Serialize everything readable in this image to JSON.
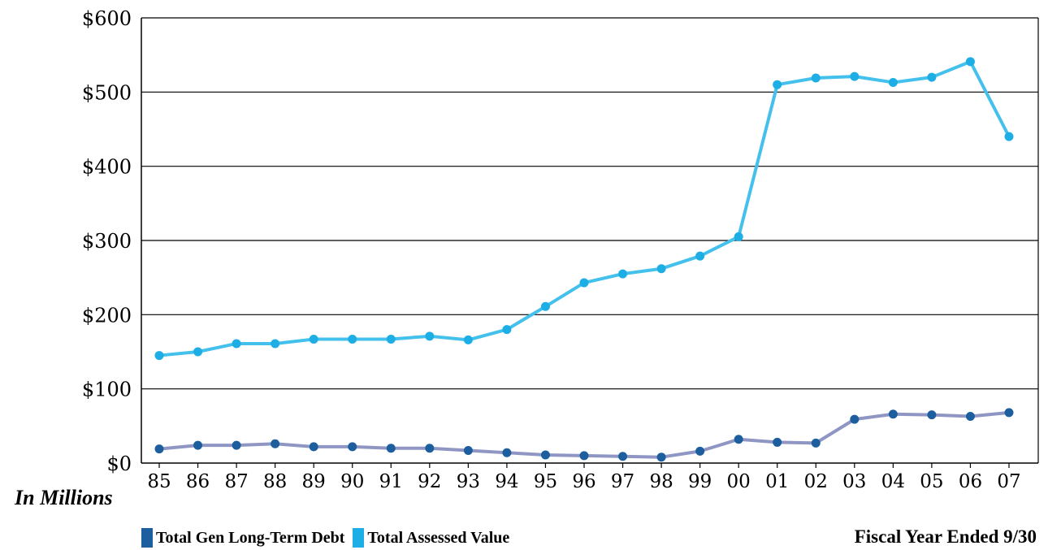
{
  "chart_data": {
    "type": "line",
    "categories": [
      "85",
      "86",
      "87",
      "88",
      "89",
      "90",
      "91",
      "92",
      "93",
      "94",
      "95",
      "96",
      "97",
      "98",
      "99",
      "00",
      "01",
      "02",
      "03",
      "04",
      "05",
      "06",
      "07"
    ],
    "ylim": [
      0,
      600
    ],
    "yticks": [
      0,
      100,
      200,
      300,
      400,
      500,
      600
    ],
    "ytick_labels": [
      "$0",
      "$100",
      "$200",
      "$300",
      "$400",
      "$500",
      "$600"
    ],
    "grid": "horizontal",
    "series": [
      {
        "name": "Total Gen Long-Term Debt",
        "color": "#1d5e9e",
        "line_color": "#8f96c4",
        "values": [
          19,
          24,
          24,
          26,
          22,
          22,
          20,
          20,
          17,
          14,
          11,
          10,
          9,
          8,
          16,
          32,
          28,
          27,
          59,
          66,
          65,
          63,
          68
        ]
      },
      {
        "name": "Total Assessed Value",
        "color": "#1eaee6",
        "line_color": "#44c0ec",
        "values": [
          145,
          150,
          161,
          161,
          167,
          167,
          167,
          171,
          166,
          180,
          211,
          243,
          255,
          262,
          279,
          305,
          510,
          519,
          521,
          513,
          520,
          541,
          440
        ]
      }
    ],
    "unit_label": "In Millions",
    "xlabel": "Fiscal Year Ended 9/30",
    "legend_position": "bottom-left"
  }
}
